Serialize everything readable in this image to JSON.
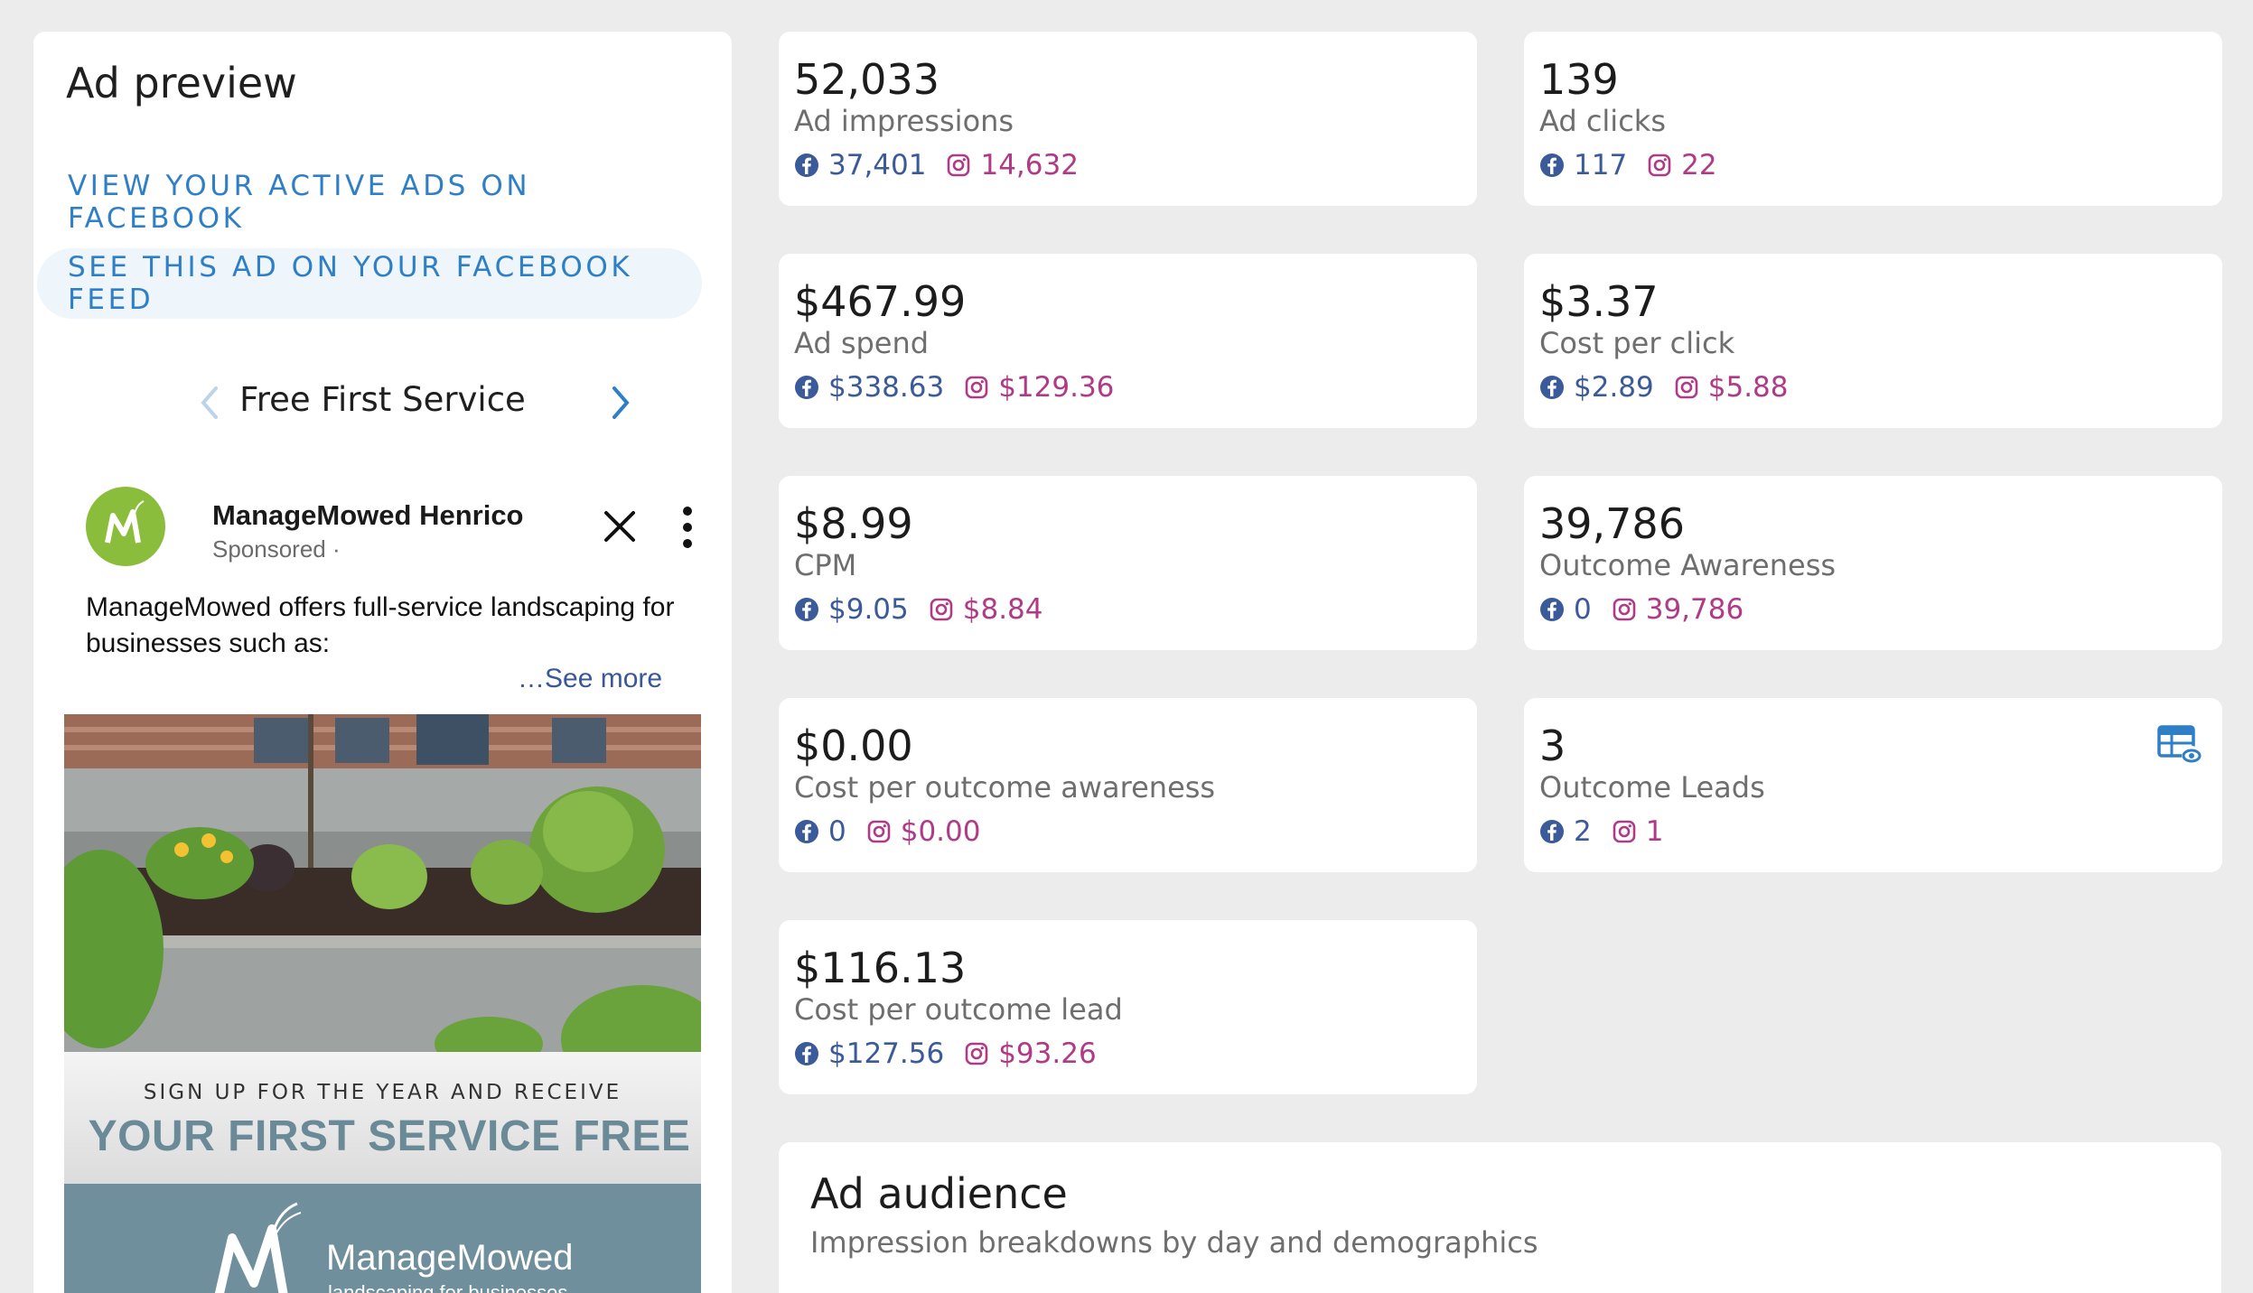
{
  "preview": {
    "title": "Ad preview",
    "view_active_ads": "VIEW YOUR ACTIVE ADS ON FACEBOOK",
    "see_on_feed": "SEE THIS AD ON YOUR FACEBOOK FEED",
    "carousel_label": "Free First Service",
    "post": {
      "page_name": "ManageMowed Henrico",
      "sponsored": "Sponsored ·",
      "body": "ManageMowed offers full-service landscaping for businesses such as:",
      "see_more": "…See more"
    },
    "creative": {
      "promo_small": "SIGN UP FOR THE YEAR AND RECEIVE",
      "promo_big": "YOUR FIRST SERVICE FREE",
      "wordmark": "ManageMowed",
      "tagline": "landscaping for businesses"
    }
  },
  "metrics": [
    {
      "value": "52,033",
      "label": "Ad impressions",
      "fb": "37,401",
      "ig": "14,632"
    },
    {
      "value": "139",
      "label": "Ad clicks",
      "fb": "117",
      "ig": "22"
    },
    {
      "value": "$467.99",
      "label": "Ad spend",
      "fb": "$338.63",
      "ig": "$129.36"
    },
    {
      "value": "$3.37",
      "label": "Cost per click",
      "fb": "$2.89",
      "ig": "$5.88"
    },
    {
      "value": "$8.99",
      "label": "CPM",
      "fb": "$9.05",
      "ig": "$8.84"
    },
    {
      "value": "39,786",
      "label": "Outcome Awareness",
      "fb": "0",
      "ig": "39,786"
    },
    {
      "value": "$0.00",
      "label": "Cost per outcome awareness",
      "fb": "0",
      "ig": "$0.00"
    },
    {
      "value": "3",
      "label": "Outcome Leads",
      "fb": "2",
      "ig": "1",
      "icon": "view-leads-icon"
    },
    {
      "value": "$116.13",
      "label": "Cost per outcome lead",
      "fb": "$127.56",
      "ig": "$93.26"
    }
  ],
  "audience": {
    "title": "Ad audience",
    "subtitle": "Impression breakdowns by day and demographics"
  },
  "colors": {
    "link_blue": "#2f7fc7",
    "facebook_blue": "#3a5a9a",
    "instagram_magenta": "#b03a86",
    "logo_green": "#8bbd3c",
    "brand_slate": "#6f8f9c"
  }
}
